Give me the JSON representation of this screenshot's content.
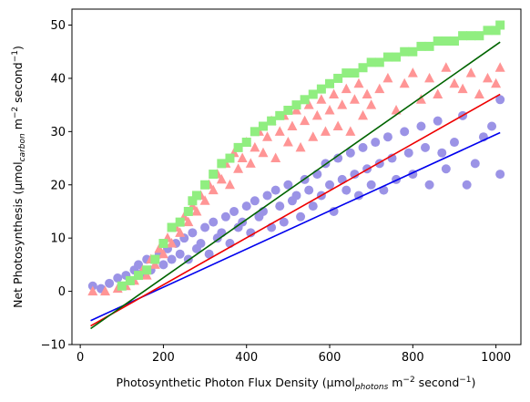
{
  "chart_data": {
    "type": "scatter",
    "title": "",
    "xlabel": "Photosynthetic Photon Flux Density (μmol",
    "xlabel_sub": "photons",
    "xlabel_tail": " m",
    "xlabel_sup": "−2",
    "xlabel_end": " second",
    "xlabel_sup2": "−1",
    "xlabel_close": ")",
    "ylabel": "Net Photosynthesis (μmol",
    "ylabel_sub": "carbon",
    "ylabel_tail": " m",
    "ylabel_sup": "−2",
    "ylabel_end": " second",
    "ylabel_sup2": "−1",
    "ylabel_close": ")",
    "xlim": [
      -20,
      1060
    ],
    "ylim": [
      -10,
      53
    ],
    "x_ticks": [
      0,
      200,
      400,
      600,
      800,
      1000
    ],
    "y_ticks": [
      -10,
      0,
      10,
      20,
      30,
      40,
      50
    ],
    "grid": false,
    "legend": "none",
    "series": [
      {
        "marker": "circle",
        "color": "#9b93e6",
        "fit_color": "#0000ee",
        "fit_x": [
          25,
          1010
        ],
        "fit_y": [
          -5.5,
          29.8
        ],
        "points": [
          [
            30,
            1
          ],
          [
            50,
            0.5
          ],
          [
            70,
            1.5
          ],
          [
            90,
            2.5
          ],
          [
            110,
            3
          ],
          [
            120,
            2
          ],
          [
            130,
            4
          ],
          [
            140,
            5
          ],
          [
            150,
            3.5
          ],
          [
            160,
            6
          ],
          [
            170,
            4
          ],
          [
            180,
            6
          ],
          [
            190,
            7
          ],
          [
            200,
            5
          ],
          [
            210,
            8
          ],
          [
            220,
            6
          ],
          [
            230,
            9
          ],
          [
            240,
            7
          ],
          [
            250,
            10
          ],
          [
            260,
            6
          ],
          [
            270,
            11
          ],
          [
            280,
            8
          ],
          [
            290,
            9
          ],
          [
            300,
            12
          ],
          [
            310,
            7
          ],
          [
            320,
            13
          ],
          [
            330,
            10
          ],
          [
            340,
            11
          ],
          [
            350,
            14
          ],
          [
            360,
            9
          ],
          [
            370,
            15
          ],
          [
            380,
            12
          ],
          [
            390,
            13
          ],
          [
            400,
            16
          ],
          [
            410,
            11
          ],
          [
            420,
            17
          ],
          [
            430,
            14
          ],
          [
            440,
            15
          ],
          [
            450,
            18
          ],
          [
            460,
            12
          ],
          [
            470,
            19
          ],
          [
            480,
            16
          ],
          [
            490,
            13
          ],
          [
            500,
            20
          ],
          [
            510,
            17
          ],
          [
            520,
            18
          ],
          [
            530,
            14
          ],
          [
            540,
            21
          ],
          [
            550,
            19
          ],
          [
            560,
            16
          ],
          [
            570,
            22
          ],
          [
            580,
            18
          ],
          [
            590,
            24
          ],
          [
            600,
            20
          ],
          [
            610,
            15
          ],
          [
            620,
            25
          ],
          [
            630,
            21
          ],
          [
            640,
            19
          ],
          [
            650,
            26
          ],
          [
            660,
            22
          ],
          [
            670,
            18
          ],
          [
            680,
            27
          ],
          [
            690,
            23
          ],
          [
            700,
            20
          ],
          [
            710,
            28
          ],
          [
            720,
            24
          ],
          [
            730,
            19
          ],
          [
            740,
            29
          ],
          [
            750,
            25
          ],
          [
            760,
            21
          ],
          [
            780,
            30
          ],
          [
            790,
            26
          ],
          [
            800,
            22
          ],
          [
            820,
            31
          ],
          [
            830,
            27
          ],
          [
            840,
            20
          ],
          [
            860,
            32
          ],
          [
            870,
            26
          ],
          [
            880,
            23
          ],
          [
            900,
            28
          ],
          [
            920,
            33
          ],
          [
            930,
            20
          ],
          [
            950,
            24
          ],
          [
            970,
            29
          ],
          [
            990,
            31
          ],
          [
            1010,
            22
          ],
          [
            1010,
            36
          ]
        ]
      },
      {
        "marker": "triangle",
        "color": "#ff9595",
        "fit_color": "#ee0000",
        "fit_x": [
          25,
          1010
        ],
        "fit_y": [
          -6.5,
          37
        ],
        "points": [
          [
            30,
            0
          ],
          [
            60,
            0
          ],
          [
            90,
            0.5
          ],
          [
            110,
            1
          ],
          [
            130,
            2
          ],
          [
            150,
            4
          ],
          [
            160,
            3
          ],
          [
            170,
            6
          ],
          [
            180,
            5
          ],
          [
            190,
            8
          ],
          [
            200,
            7
          ],
          [
            210,
            10
          ],
          [
            220,
            9
          ],
          [
            230,
            12
          ],
          [
            240,
            11
          ],
          [
            250,
            14
          ],
          [
            260,
            13
          ],
          [
            270,
            16
          ],
          [
            280,
            15
          ],
          [
            290,
            18
          ],
          [
            300,
            17
          ],
          [
            310,
            20
          ],
          [
            320,
            19
          ],
          [
            330,
            22
          ],
          [
            340,
            21
          ],
          [
            350,
            24
          ],
          [
            360,
            20
          ],
          [
            370,
            26
          ],
          [
            380,
            23
          ],
          [
            390,
            25
          ],
          [
            400,
            28
          ],
          [
            410,
            24
          ],
          [
            420,
            27
          ],
          [
            430,
            30
          ],
          [
            440,
            26
          ],
          [
            450,
            29
          ],
          [
            460,
            32
          ],
          [
            470,
            25
          ],
          [
            480,
            30
          ],
          [
            490,
            33
          ],
          [
            500,
            28
          ],
          [
            510,
            31
          ],
          [
            520,
            34
          ],
          [
            530,
            27
          ],
          [
            540,
            32
          ],
          [
            550,
            35
          ],
          [
            560,
            29
          ],
          [
            570,
            33
          ],
          [
            580,
            36
          ],
          [
            590,
            30
          ],
          [
            600,
            34
          ],
          [
            610,
            37
          ],
          [
            620,
            31
          ],
          [
            630,
            35
          ],
          [
            640,
            38
          ],
          [
            650,
            30
          ],
          [
            660,
            36
          ],
          [
            670,
            39
          ],
          [
            680,
            33
          ],
          [
            690,
            37
          ],
          [
            700,
            35
          ],
          [
            720,
            38
          ],
          [
            740,
            40
          ],
          [
            760,
            34
          ],
          [
            780,
            39
          ],
          [
            800,
            41
          ],
          [
            820,
            36
          ],
          [
            840,
            40
          ],
          [
            860,
            37
          ],
          [
            880,
            42
          ],
          [
            900,
            39
          ],
          [
            920,
            38
          ],
          [
            940,
            41
          ],
          [
            960,
            37
          ],
          [
            980,
            40
          ],
          [
            1000,
            39
          ],
          [
            1010,
            42
          ]
        ]
      },
      {
        "marker": "square",
        "color": "#90ee80",
        "fit_color": "#006400",
        "fit_x": [
          25,
          1010
        ],
        "fit_y": [
          -7,
          46.8
        ],
        "points": [
          [
            100,
            1
          ],
          [
            120,
            2
          ],
          [
            140,
            3
          ],
          [
            160,
            4
          ],
          [
            180,
            6
          ],
          [
            200,
            9
          ],
          [
            220,
            12
          ],
          [
            240,
            13
          ],
          [
            260,
            15
          ],
          [
            270,
            17
          ],
          [
            280,
            18
          ],
          [
            300,
            20
          ],
          [
            320,
            22
          ],
          [
            340,
            24
          ],
          [
            360,
            25
          ],
          [
            380,
            27
          ],
          [
            400,
            28
          ],
          [
            420,
            30
          ],
          [
            440,
            31
          ],
          [
            460,
            32
          ],
          [
            480,
            33
          ],
          [
            500,
            34
          ],
          [
            520,
            35
          ],
          [
            540,
            36
          ],
          [
            560,
            37
          ],
          [
            580,
            38
          ],
          [
            600,
            39
          ],
          [
            620,
            40
          ],
          [
            640,
            41
          ],
          [
            660,
            41
          ],
          [
            680,
            42
          ],
          [
            700,
            43
          ],
          [
            720,
            43
          ],
          [
            740,
            44
          ],
          [
            760,
            44
          ],
          [
            780,
            45
          ],
          [
            800,
            45
          ],
          [
            820,
            46
          ],
          [
            840,
            46
          ],
          [
            860,
            47
          ],
          [
            880,
            47
          ],
          [
            900,
            47
          ],
          [
            920,
            48
          ],
          [
            940,
            48
          ],
          [
            960,
            48
          ],
          [
            980,
            49
          ],
          [
            1000,
            49
          ],
          [
            1010,
            50
          ]
        ]
      }
    ]
  }
}
